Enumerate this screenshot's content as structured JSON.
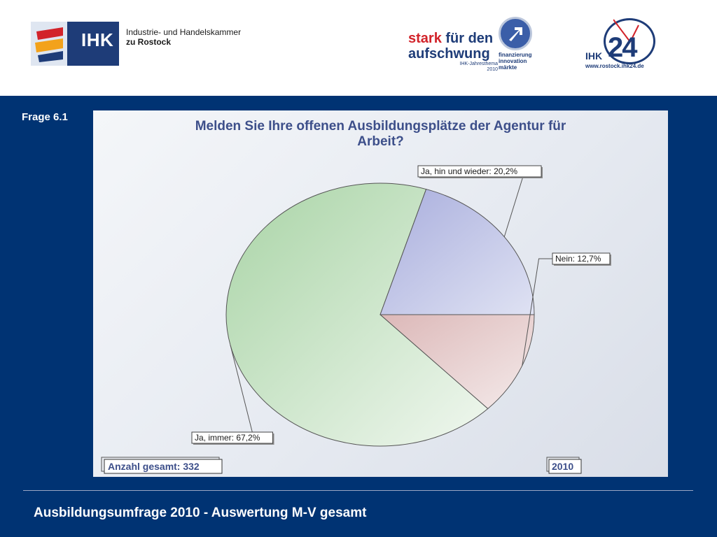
{
  "header": {
    "ihk_wordmark": "IHK",
    "ihk_name_line1": "Industrie- und Handelskammer",
    "ihk_name_line2": "zu Rostock",
    "campaign_word1": "stark",
    "campaign_word2": "für den",
    "campaign_word3": "aufschwung",
    "campaign_tagline1": "IHK-Jahresthema",
    "campaign_tagline2": "2010",
    "campaign_sub1": "finanzierung",
    "campaign_sub2": "innovation",
    "campaign_sub3": "märkte",
    "ihk24_label": "IHK",
    "ihk24_number": "24",
    "ihk24_url": "www.rostock.ihk24.de"
  },
  "slide": {
    "question_label": "Frage 6.1",
    "footer_title": "Ausbildungsumfrage 2010 - Auswertung M-V gesamt"
  },
  "chart_data": {
    "type": "pie",
    "title_line1": "Melden Sie Ihre offenen Ausbildungsplätze der Agentur für",
    "title_line2": "Arbeit?",
    "slices": [
      {
        "label": "Nein: 12,7%",
        "value": 12.7,
        "color": "#e8d2d2"
      },
      {
        "label": "Ja, immer: 67,2%",
        "value": 67.2,
        "color": "#cfe6cc"
      },
      {
        "label": "Ja, hin und wieder: 20,2%",
        "value": 20.2,
        "color": "#c5c9e8"
      }
    ],
    "start_angle_deg": 0,
    "direction": "clockwise",
    "footer_left": "Anzahl gesamt: 332",
    "footer_right": "2010"
  }
}
